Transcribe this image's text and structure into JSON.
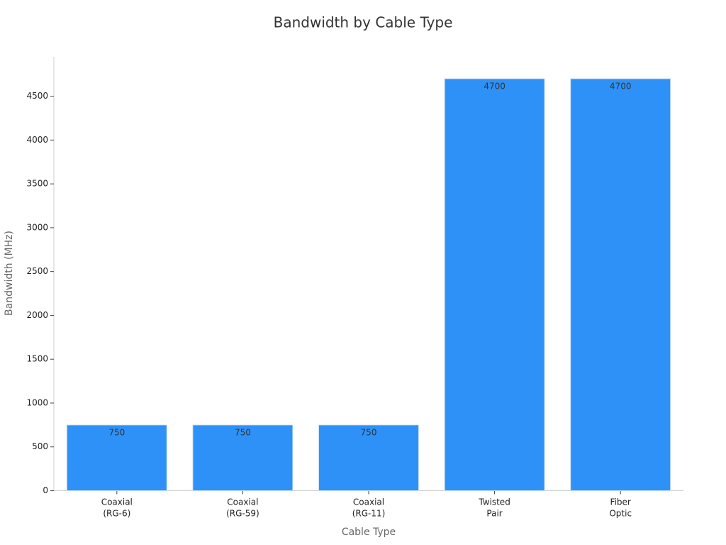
{
  "chart_data": {
    "type": "bar",
    "title": "Bandwidth by Cable Type",
    "x_label": "Cable Type",
    "y_label": "Bandwidth (MHz)",
    "categories": [
      "Coaxial\n(RG-6)",
      "Coaxial\n(RG-59)",
      "Coaxial\n(RG-11)",
      "Twisted\nPair",
      "Fiber\nOptic"
    ],
    "values": [
      750,
      750,
      750,
      4700,
      4700
    ],
    "color": "#2e91f8",
    "ylim": [
      0,
      4950
    ],
    "yticks": [
      0,
      500,
      1000,
      1500,
      2000,
      2500,
      3000,
      3500,
      4000,
      4500
    ],
    "grid": false
  }
}
